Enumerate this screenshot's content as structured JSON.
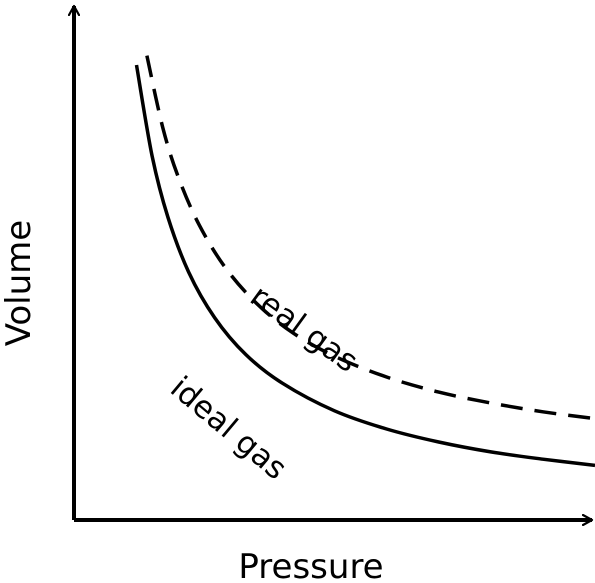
{
  "chart_data": {
    "type": "line",
    "title": "",
    "xlabel": "Pressure",
    "ylabel": "Volume",
    "xlim": [
      0,
      10
    ],
    "ylim": [
      0,
      10
    ],
    "grid": false,
    "legend": "none",
    "series": [
      {
        "name": "ideal gas",
        "style": "solid",
        "color": "#000000",
        "x": [
          1.2,
          1.5,
          1.8,
          2.2,
          2.7,
          3.3,
          4.0,
          5.0,
          6.0,
          7.0,
          8.0,
          9.0,
          10.0
        ],
        "y": [
          8.75,
          7.0,
          5.83,
          4.77,
          3.89,
          3.18,
          2.63,
          2.1,
          1.75,
          1.5,
          1.31,
          1.17,
          1.05
        ]
      },
      {
        "name": "real gas",
        "style": "dashed",
        "color": "#000000",
        "x": [
          1.4,
          1.7,
          2.0,
          2.4,
          2.9,
          3.5,
          4.2,
          5.0,
          6.0,
          7.0,
          8.0,
          9.0,
          10.0
        ],
        "y": [
          8.93,
          7.56,
          6.6,
          5.68,
          4.86,
          4.17,
          3.6,
          3.15,
          2.75,
          2.46,
          2.25,
          2.08,
          1.95
        ]
      }
    ]
  }
}
